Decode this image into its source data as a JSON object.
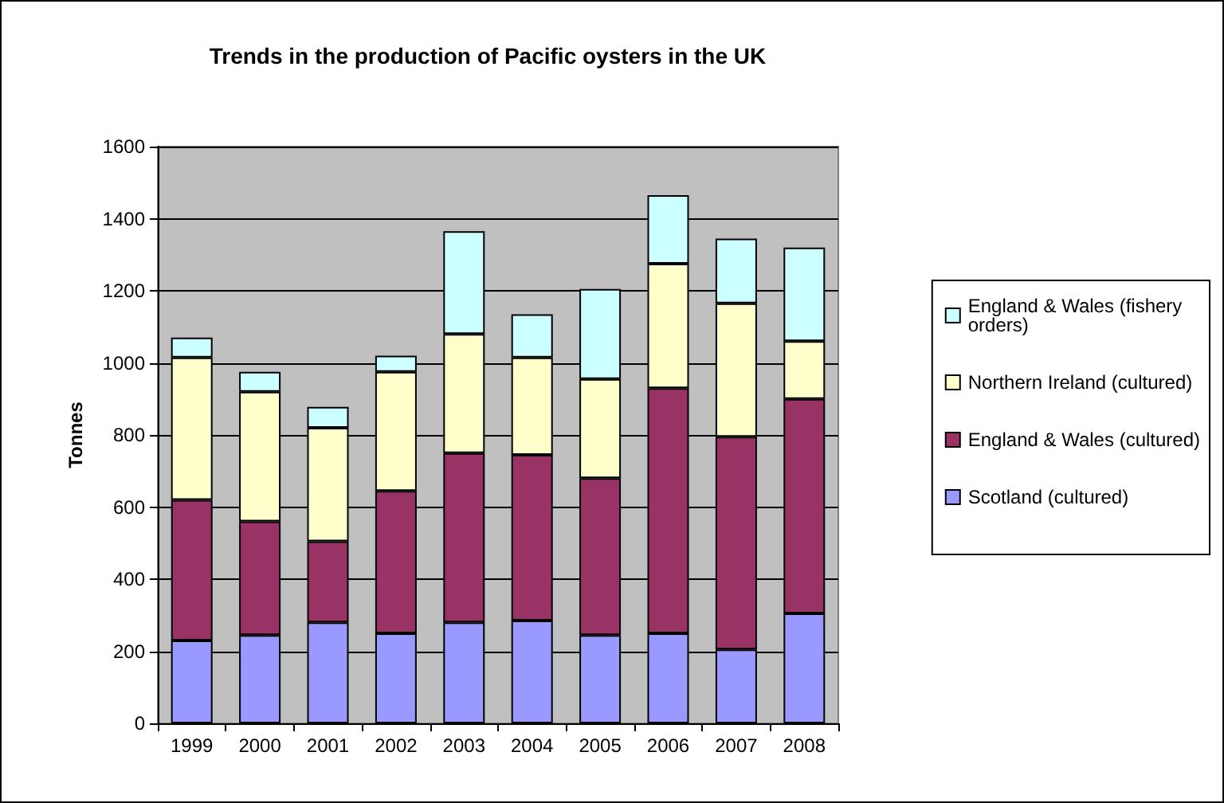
{
  "chart_data": {
    "type": "bar",
    "title": "Trends in the production of Pacific oysters in the UK",
    "ylabel": "Tonnes",
    "categories": [
      "1999",
      "2000",
      "2001",
      "2002",
      "2003",
      "2004",
      "2005",
      "2006",
      "2007",
      "2008"
    ],
    "stacked": true,
    "series": [
      {
        "name": "Scotland (cultured)",
        "color": "#9999ff",
        "values": [
          230,
          245,
          280,
          250,
          280,
          285,
          245,
          250,
          205,
          305
        ]
      },
      {
        "name": "England & Wales (cultured)",
        "color": "#993366",
        "values": [
          390,
          315,
          225,
          395,
          470,
          460,
          435,
          680,
          590,
          595
        ]
      },
      {
        "name": "Northern Ireland (cultured)",
        "color": "#ffffcc",
        "values": [
          395,
          360,
          315,
          330,
          330,
          270,
          275,
          345,
          370,
          160
        ]
      },
      {
        "name": "England & Wales (fishery orders)",
        "color": "#ccffff",
        "values": [
          55,
          55,
          58,
          45,
          285,
          120,
          250,
          190,
          180,
          260
        ]
      }
    ],
    "ylim": [
      0,
      1600
    ],
    "yticks": [
      0,
      200,
      400,
      600,
      800,
      1000,
      1200,
      1400,
      1600
    ],
    "grid": "y",
    "legend": "right"
  }
}
